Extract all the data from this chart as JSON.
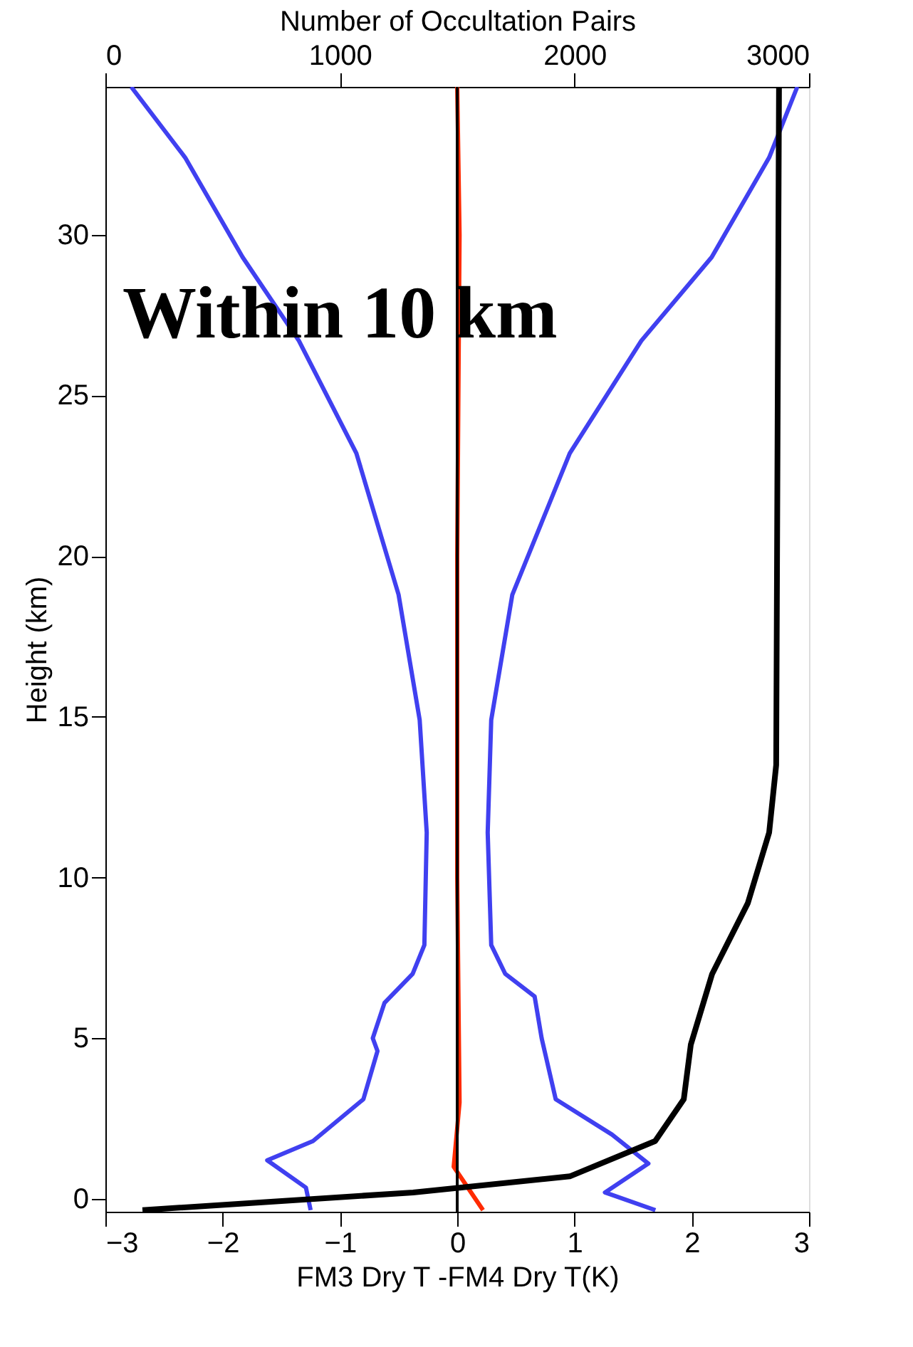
{
  "chart_data": {
    "type": "line",
    "xlabel": "FM3 Dry T -FM4 Dry T(K)",
    "ylabel": "Height (km)",
    "x2label": "Number of Occultation Pairs",
    "annotations": [
      "Within 10 km"
    ],
    "xlim": [
      -3,
      3
    ],
    "xticks": [
      -3,
      -2,
      -1,
      0,
      1,
      2,
      3
    ],
    "x2lim": [
      0,
      3000
    ],
    "x2ticks": [
      0,
      1000,
      2000,
      3000
    ],
    "ylim": [
      -0.4,
      34.6
    ],
    "yticks": [
      0,
      5,
      10,
      15,
      20,
      25,
      30
    ],
    "grid": false,
    "line_style": "solid",
    "marker": "none",
    "ref_lines": [
      {
        "axis": "x",
        "value": 0,
        "color": "#000000"
      }
    ],
    "series": [
      {
        "color": "#4040f0",
        "x": [
          -2.78,
          -2.32,
          -1.83,
          -1.35,
          -0.86,
          -0.5,
          -0.32,
          -0.26,
          -0.28,
          -0.38,
          -0.62,
          -0.72,
          -0.68,
          -0.8,
          -1.23,
          -1.62,
          -1.29,
          -1.25
        ],
        "values": [
          34.6,
          32.4,
          29.3,
          26.7,
          23.2,
          18.8,
          14.9,
          11.4,
          7.9,
          7.0,
          6.1,
          5.0,
          4.6,
          3.1,
          1.8,
          1.2,
          0.35,
          -0.35
        ]
      },
      {
        "color": "#4040f0",
        "x": [
          2.9,
          2.66,
          2.17,
          1.57,
          0.96,
          0.47,
          0.29,
          0.26,
          0.29,
          0.41,
          0.66,
          0.72,
          0.84,
          1.32,
          1.63,
          1.26,
          1.69
        ],
        "values": [
          34.6,
          32.4,
          29.3,
          26.7,
          23.2,
          18.8,
          14.9,
          11.4,
          7.9,
          7.0,
          6.3,
          5.0,
          3.1,
          2.0,
          1.1,
          0.2,
          -0.35
        ]
      },
      {
        "color": "#ff2a00",
        "x": [
          0,
          0.02,
          0,
          0,
          0.02,
          -0.03,
          0.22
        ],
        "values": [
          34.6,
          30,
          20,
          10,
          3,
          1,
          -0.35
        ]
      },
      {
        "color": "#000000",
        "axis": "x2",
        "x": [
          2872,
          2860,
          2830,
          2739,
          2587,
          2496,
          2466,
          2344,
          1980,
          1312,
          158
        ],
        "values": [
          34.6,
          13.5,
          11.4,
          9.2,
          7.0,
          4.8,
          3.1,
          1.8,
          0.7,
          0.2,
          -0.35
        ]
      }
    ]
  }
}
